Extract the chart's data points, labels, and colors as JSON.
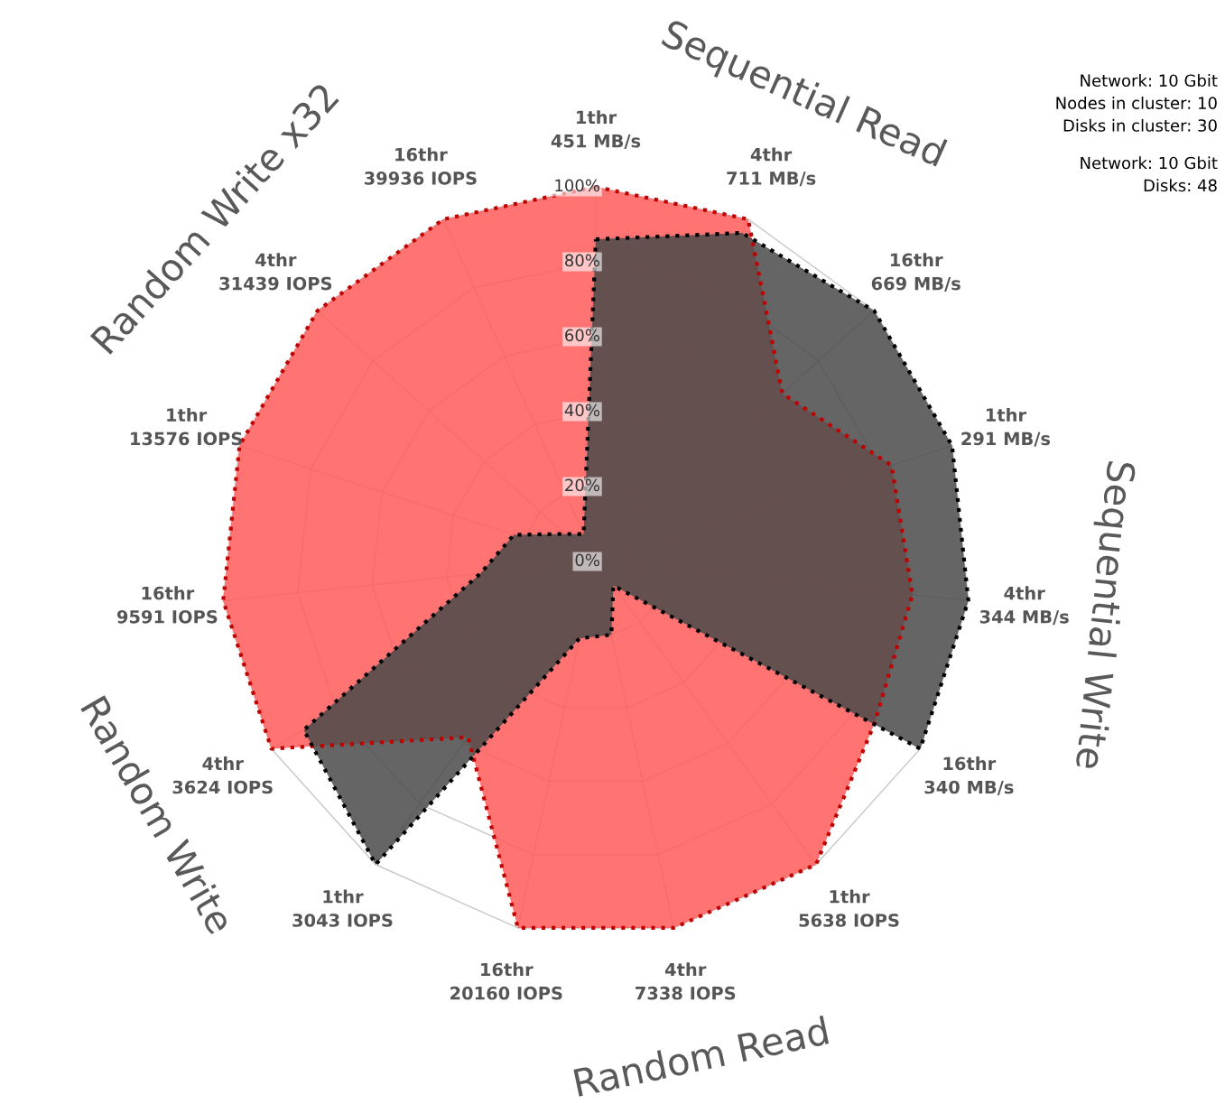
{
  "chart_data": {
    "type": "radar",
    "categories": [
      "1thr\n451 MB/s",
      "4thr\n711 MB/s",
      "16thr\n669 MB/s",
      "1thr\n291 MB/s",
      "4thr\n344 MB/s",
      "16thr\n340 MB/s",
      "1thr\n5638 IOPS",
      "4thr\n7338 IOPS",
      "16thr\n20160 IOPS",
      "1thr\n3043 IOPS",
      "4thr\n3624 IOPS",
      "16thr\n9591 IOPS",
      "1thr\n13576 IOPS",
      "4thr\n31439 IOPS",
      "16thr\n39936 IOPS"
    ],
    "series": [
      {
        "color": "#ff5b5b",
        "values": [
          100,
          100,
          67,
          83,
          85,
          86,
          100,
          100,
          100,
          58,
          100,
          100,
          100,
          100,
          100
        ]
      },
      {
        "color": "#4a4a4a",
        "values": [
          86,
          96,
          100,
          100,
          100,
          100,
          8,
          20,
          21,
          100,
          90,
          31,
          23,
          11,
          8
        ]
      }
    ],
    "ylim": [
      0,
      100
    ],
    "yticks": [
      {
        "value": 0,
        "label": "0%"
      },
      {
        "value": 20,
        "label": "20%"
      },
      {
        "value": 40,
        "label": "40%"
      },
      {
        "value": 60,
        "label": "60%"
      },
      {
        "value": 80,
        "label": "80%"
      },
      {
        "value": 100,
        "label": "100%"
      }
    ],
    "grid": true,
    "line_style": "dotted",
    "legend": false,
    "annotations": [
      "Sequential Read",
      "Sequential Write",
      "Random Read",
      "Random Write",
      "Random Write x32",
      "Network: 10 Gbit",
      "Nodes in cluster: 10",
      "Disks in cluster: 30",
      "Network: 10 Gbit",
      "Disks: 48"
    ]
  }
}
